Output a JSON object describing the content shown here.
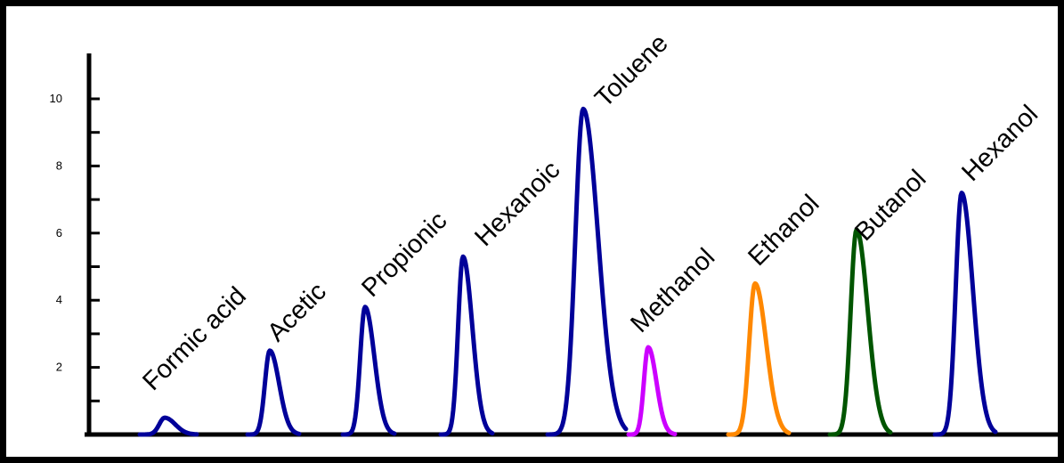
{
  "chart_data": {
    "type": "line",
    "title": "",
    "xlabel": "",
    "ylabel": "",
    "ylim": [
      0,
      11
    ],
    "yticks": [
      2,
      4,
      6,
      8,
      10
    ],
    "grid": false,
    "legend": "none",
    "peaks": [
      {
        "label": "Formic acid",
        "height": 0.5,
        "color": "#000099"
      },
      {
        "label": "Acetic",
        "height": 2.5,
        "color": "#000099"
      },
      {
        "label": "Propionic",
        "height": 3.8,
        "color": "#000099"
      },
      {
        "label": "Hexanoic",
        "height": 5.3,
        "color": "#000099"
      },
      {
        "label": "Toluene",
        "height": 9.7,
        "color": "#000099"
      },
      {
        "label": "Methanol",
        "height": 2.6,
        "color": "#cc00ff"
      },
      {
        "label": "Ethanol",
        "height": 4.5,
        "color": "#ff8800"
      },
      {
        "label": "Butanol",
        "height": 6.1,
        "color": "#005500"
      },
      {
        "label": "Hexanol",
        "height": 7.2,
        "color": "#000099"
      }
    ]
  }
}
